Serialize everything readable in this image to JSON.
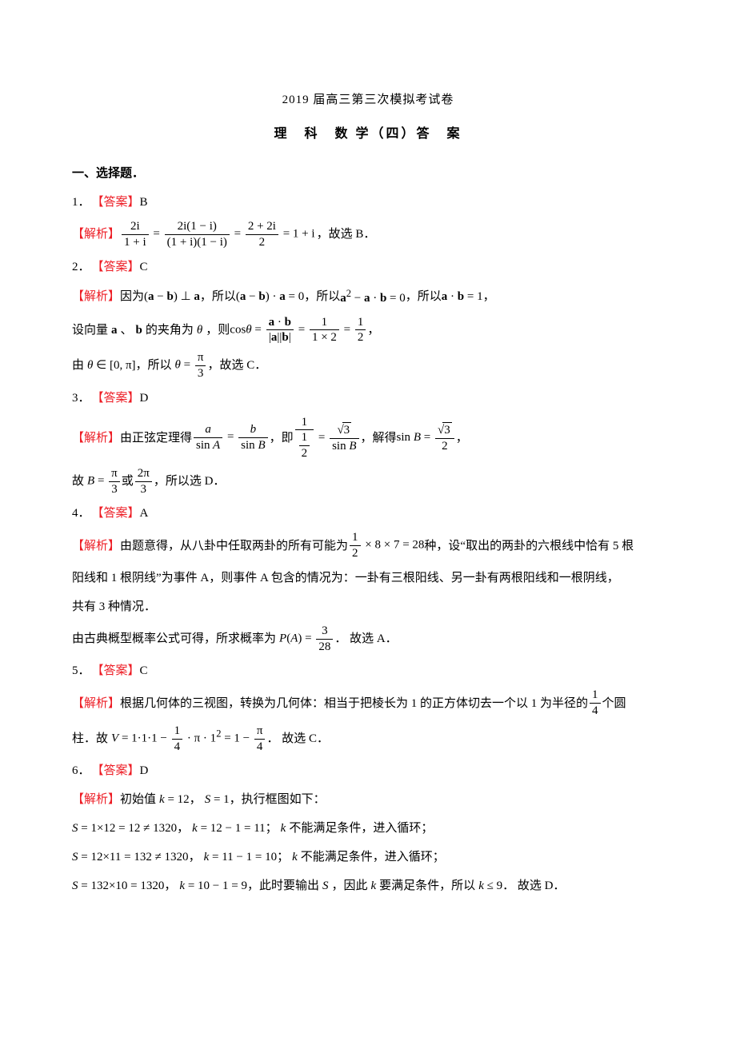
{
  "colors": {
    "accent": "#ed1c24",
    "text": "#000000",
    "bg": "#ffffff"
  },
  "typography": {
    "body_family": "SimSun",
    "math_family": "Times New Roman",
    "body_size_pt": 11,
    "line_height": 2.0
  },
  "title": "2019 届高三第三次模拟考试卷",
  "subtitle": "理　科　数 学（四）答　案",
  "section_heading": "一、选择题．",
  "labels": {
    "answer": "【答案】",
    "analysis": "【解析】"
  },
  "q1": {
    "num": "1．",
    "ans": "B",
    "tail": "，故选 B．"
  },
  "q2": {
    "num": "2．",
    "ans": "C",
    "jx_a": "因为",
    "jx_b": "，所以",
    "jx_c": "，所以",
    "jx_d": "，所以",
    "jx_e": "，",
    "line2a": "设向量",
    "line2b": "、",
    "line2c": "的夹角为",
    "line2d": "，则",
    "line2e": "，",
    "line3a": "由",
    "line3b": "，所以",
    "line3c": "，故选 C．"
  },
  "q3": {
    "num": "3．",
    "ans": "D",
    "jx_a": "由正弦定理得",
    "jx_b": "，即",
    "jx_c": "，解得",
    "jx_d": "，",
    "line2a": "故",
    "line2b": "或",
    "line2c": "，所以选 D．"
  },
  "q4": {
    "num": "4．",
    "ans": "A",
    "jx_a": "由题意得，从八卦中任取两卦的所有可能为",
    "jx_b": "种，设“取出的两卦的六根线中恰有 5 根",
    "line2": "阳线和 1 根阴线”为事件 A，则事件 A 包含的情况为：一卦有三根阳线、另一卦有两根阳线和一根阴线，",
    "line3": "共有 3 种情况．",
    "line4a": "由古典概型概率公式可得，所求概率为",
    "line4b": "． 故选 A．"
  },
  "q5": {
    "num": "5．",
    "ans": "C",
    "jx_a": "根据几何体的三视图，转换为几何体：相当于把棱长为 1 的正方体切去一个以 1 为半径的",
    "jx_b": "个圆",
    "line2a": "柱．故",
    "line2b": "． 故选 C．"
  },
  "q6": {
    "num": "6．",
    "ans": "D",
    "jx_a": "初始值",
    "jx_b": "，",
    "jx_c": "，执行框图如下：",
    "s1a": "，",
    "s1b": "；",
    "s1c": "不能满足条件，进入循环；",
    "s2a": "，",
    "s2b": "；",
    "s2c": "不能满足条件，进入循环；",
    "s3a": "，",
    "s3b": "，此时要输出",
    "s3c": "，因此",
    "s3d": "要满足条件，所以",
    "s3e": "． 故选 D．"
  }
}
